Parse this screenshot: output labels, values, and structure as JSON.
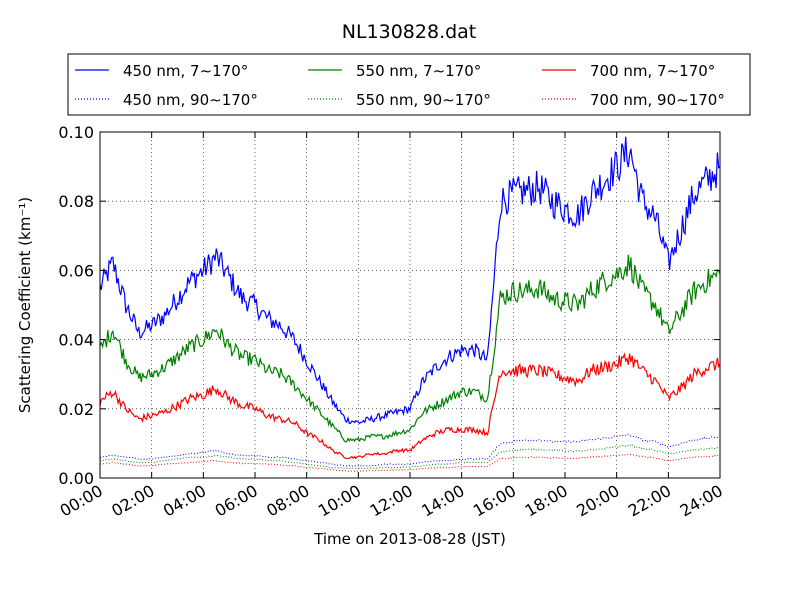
{
  "chart_data": {
    "type": "line",
    "title": "NL130828.dat",
    "xlabel": "Time on 2013-08-28 (JST)",
    "ylabel": "Scattering Coefficient (km⁻¹)",
    "xlim": [
      "00:00",
      "24:00"
    ],
    "ylim": [
      0.0,
      0.1
    ],
    "x_ticks": [
      "00:00",
      "02:00",
      "04:00",
      "06:00",
      "08:00",
      "10:00",
      "12:00",
      "14:00",
      "16:00",
      "18:00",
      "20:00",
      "22:00",
      "24:00"
    ],
    "y_ticks": [
      "0.00",
      "0.02",
      "0.04",
      "0.06",
      "0.08",
      "0.10"
    ],
    "grid": true,
    "legend_position": "top",
    "x": [
      "00:00",
      "00:30",
      "01:00",
      "01:30",
      "02:00",
      "02:30",
      "03:00",
      "03:30",
      "04:00",
      "04:30",
      "05:00",
      "05:30",
      "06:00",
      "06:30",
      "07:00",
      "07:30",
      "08:00",
      "08:30",
      "09:00",
      "09:30",
      "10:00",
      "10:30",
      "11:00",
      "11:30",
      "12:00",
      "12:30",
      "13:00",
      "13:30",
      "14:00",
      "14:30",
      "15:00",
      "15:30",
      "16:00",
      "16:30",
      "17:00",
      "17:30",
      "18:00",
      "18:30",
      "19:00",
      "19:30",
      "20:00",
      "20:30",
      "21:00",
      "21:30",
      "22:00",
      "22:30",
      "23:00",
      "23:30",
      "24:00"
    ],
    "series": [
      {
        "name": "450 nm, 7∼170°",
        "color": "#0000ff",
        "style": "solid",
        "values": [
          0.055,
          0.062,
          0.05,
          0.042,
          0.044,
          0.047,
          0.052,
          0.057,
          0.06,
          0.064,
          0.058,
          0.052,
          0.05,
          0.046,
          0.044,
          0.04,
          0.034,
          0.028,
          0.022,
          0.017,
          0.016,
          0.017,
          0.018,
          0.019,
          0.02,
          0.028,
          0.032,
          0.035,
          0.037,
          0.037,
          0.034,
          0.08,
          0.082,
          0.083,
          0.084,
          0.08,
          0.078,
          0.076,
          0.082,
          0.086,
          0.09,
          0.095,
          0.08,
          0.075,
          0.062,
          0.072,
          0.082,
          0.086,
          0.09
        ]
      },
      {
        "name": "550 nm, 7∼170°",
        "color": "#008000",
        "style": "solid",
        "values": [
          0.037,
          0.043,
          0.034,
          0.029,
          0.03,
          0.032,
          0.035,
          0.038,
          0.04,
          0.043,
          0.038,
          0.035,
          0.034,
          0.031,
          0.03,
          0.027,
          0.023,
          0.019,
          0.015,
          0.011,
          0.011,
          0.012,
          0.012,
          0.013,
          0.014,
          0.019,
          0.021,
          0.023,
          0.025,
          0.025,
          0.023,
          0.052,
          0.054,
          0.054,
          0.055,
          0.052,
          0.051,
          0.05,
          0.054,
          0.057,
          0.059,
          0.062,
          0.054,
          0.05,
          0.042,
          0.048,
          0.054,
          0.057,
          0.059
        ]
      },
      {
        "name": "700 nm, 7∼170°",
        "color": "#ff0000",
        "style": "solid",
        "values": [
          0.022,
          0.025,
          0.02,
          0.017,
          0.018,
          0.019,
          0.021,
          0.023,
          0.024,
          0.026,
          0.023,
          0.021,
          0.02,
          0.018,
          0.017,
          0.016,
          0.013,
          0.011,
          0.008,
          0.006,
          0.006,
          0.007,
          0.007,
          0.008,
          0.008,
          0.011,
          0.013,
          0.014,
          0.014,
          0.014,
          0.013,
          0.031,
          0.031,
          0.031,
          0.031,
          0.03,
          0.029,
          0.028,
          0.031,
          0.032,
          0.033,
          0.035,
          0.031,
          0.028,
          0.023,
          0.026,
          0.03,
          0.032,
          0.033
        ]
      },
      {
        "name": "450 nm, 90∼170°",
        "color": "#0000ff",
        "style": "dotted",
        "values": [
          0.006,
          0.0065,
          0.006,
          0.0055,
          0.0055,
          0.006,
          0.0065,
          0.007,
          0.0075,
          0.008,
          0.007,
          0.0065,
          0.0065,
          0.006,
          0.006,
          0.0055,
          0.005,
          0.0045,
          0.004,
          0.0035,
          0.0035,
          0.0035,
          0.004,
          0.004,
          0.004,
          0.0045,
          0.005,
          0.005,
          0.0055,
          0.0055,
          0.0055,
          0.01,
          0.0105,
          0.011,
          0.011,
          0.0105,
          0.0105,
          0.0105,
          0.011,
          0.0115,
          0.012,
          0.0125,
          0.011,
          0.0105,
          0.009,
          0.01,
          0.011,
          0.0115,
          0.012
        ]
      },
      {
        "name": "550 nm, 90∼170°",
        "color": "#008000",
        "style": "dotted",
        "values": [
          0.005,
          0.0055,
          0.005,
          0.0045,
          0.0045,
          0.005,
          0.0055,
          0.006,
          0.006,
          0.0065,
          0.006,
          0.0055,
          0.0055,
          0.005,
          0.005,
          0.0045,
          0.004,
          0.0035,
          0.003,
          0.0028,
          0.0028,
          0.0028,
          0.003,
          0.003,
          0.0032,
          0.0035,
          0.004,
          0.004,
          0.0045,
          0.0045,
          0.0045,
          0.0075,
          0.008,
          0.0082,
          0.0082,
          0.008,
          0.0078,
          0.0078,
          0.008,
          0.0085,
          0.009,
          0.0095,
          0.0085,
          0.008,
          0.007,
          0.0075,
          0.008,
          0.0085,
          0.0088
        ]
      },
      {
        "name": "700 nm, 90∼170°",
        "color": "#ff0000",
        "style": "dotted",
        "values": [
          0.004,
          0.0045,
          0.004,
          0.0035,
          0.0035,
          0.004,
          0.0042,
          0.0045,
          0.0048,
          0.005,
          0.0045,
          0.0042,
          0.0042,
          0.004,
          0.0038,
          0.0035,
          0.003,
          0.0028,
          0.0024,
          0.002,
          0.002,
          0.0021,
          0.0022,
          0.0023,
          0.0024,
          0.0027,
          0.003,
          0.003,
          0.0033,
          0.0033,
          0.0033,
          0.0055,
          0.0058,
          0.006,
          0.006,
          0.0058,
          0.0057,
          0.0057,
          0.006,
          0.0062,
          0.0065,
          0.0068,
          0.0062,
          0.0058,
          0.005,
          0.0055,
          0.006,
          0.0062,
          0.0065
        ]
      }
    ]
  }
}
